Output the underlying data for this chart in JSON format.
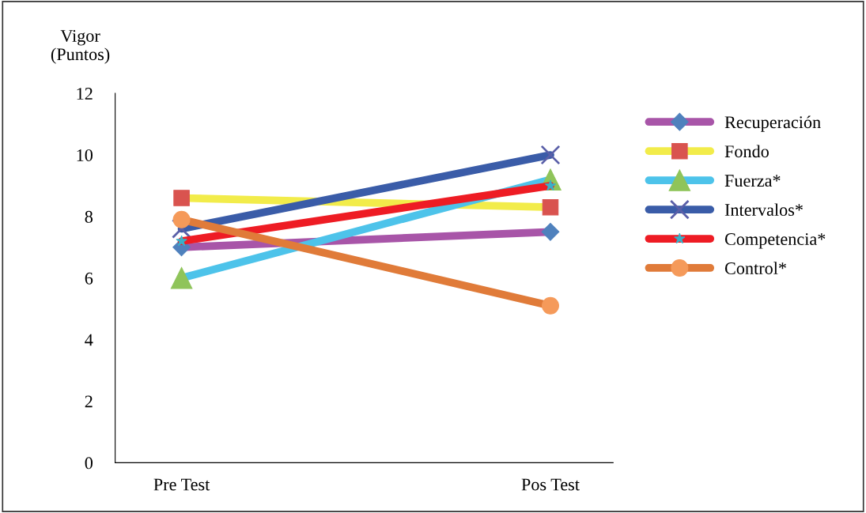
{
  "chart_data": {
    "type": "line",
    "ylabel": "Vigor\n(Puntos)",
    "categories": [
      "Pre Test",
      "Pos Test"
    ],
    "ylim": [
      0,
      12
    ],
    "yticks": [
      0,
      2,
      4,
      6,
      8,
      10,
      12
    ],
    "grid": false,
    "legend": "right",
    "series": [
      {
        "name": "Recuperación",
        "color": "#a855a8",
        "marker": "diamond",
        "values": [
          7.0,
          7.5
        ]
      },
      {
        "name": "Fondo",
        "color": "#f2ec4a",
        "marker": "square",
        "values": [
          8.6,
          8.3
        ]
      },
      {
        "name": "Fuerza*",
        "color": "#4dc3ea",
        "marker": "triangle",
        "values": [
          6.0,
          9.2
        ]
      },
      {
        "name": "Intervalos*",
        "color": "#3a5ca8",
        "marker": "cross",
        "values": [
          7.6,
          10.0
        ]
      },
      {
        "name": "Competencia*",
        "color": "#ee1c24",
        "marker": "star",
        "values": [
          7.2,
          9.0
        ]
      },
      {
        "name": "Control*",
        "color": "#e07b39",
        "marker": "circle",
        "values": [
          7.9,
          5.1
        ]
      }
    ]
  }
}
